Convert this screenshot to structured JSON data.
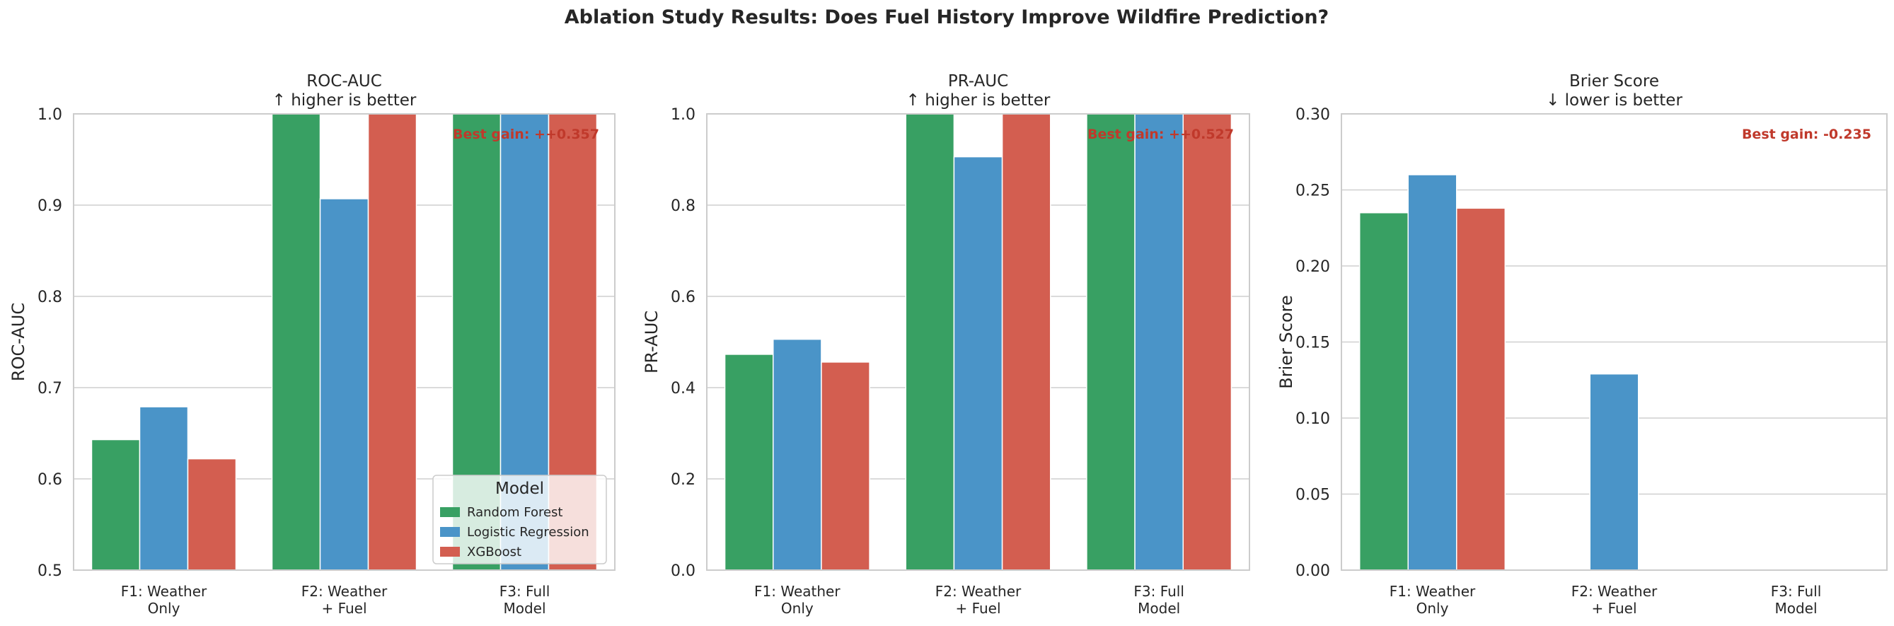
{
  "figure": {
    "suptitle": "Ablation Study Results: Does Fuel History Improve Wildfire Prediction?",
    "legend": {
      "title": "Model",
      "entries": [
        "Random Forest",
        "Logistic Regression",
        "XGBoost"
      ]
    }
  },
  "colors": {
    "Random Forest": "#38a063",
    "Logistic Regression": "#4a94c8",
    "XGBoost": "#d35e50",
    "gain_text": "#c0392b",
    "grid": "#cfcfcf",
    "frame": "#cccccc"
  },
  "chart_data": [
    {
      "type": "bar",
      "title": "ROC-AUC\n↑ higher is better",
      "xlabel": "",
      "ylabel": "ROC-AUC",
      "ylim": [
        0.5,
        1.0
      ],
      "yticks": [
        0.5,
        0.6,
        0.7,
        0.8,
        0.9,
        1.0
      ],
      "ytick_format": 1,
      "categories": [
        "F1: Weather\nOnly",
        "F2: Weather\n+ Fuel",
        "F3: Full\nModel"
      ],
      "series": [
        {
          "name": "Random Forest",
          "values": [
            0.643,
            1.0,
            1.0
          ]
        },
        {
          "name": "Logistic Regression",
          "values": [
            0.679,
            0.907,
            1.0
          ]
        },
        {
          "name": "XGBoost",
          "values": [
            0.622,
            1.0,
            1.0
          ]
        }
      ],
      "annotation": "Best gain: ++0.357",
      "legend": "lower-right"
    },
    {
      "type": "bar",
      "title": "PR-AUC\n↑ higher is better",
      "xlabel": "",
      "ylabel": "PR-AUC",
      "ylim": [
        0.0,
        1.0
      ],
      "yticks": [
        0.0,
        0.2,
        0.4,
        0.6,
        0.8,
        1.0
      ],
      "ytick_format": 1,
      "categories": [
        "F1: Weather\nOnly",
        "F2: Weather\n+ Fuel",
        "F3: Full\nModel"
      ],
      "series": [
        {
          "name": "Random Forest",
          "values": [
            0.473,
            1.0,
            1.0
          ]
        },
        {
          "name": "Logistic Regression",
          "values": [
            0.506,
            0.906,
            1.0
          ]
        },
        {
          "name": "XGBoost",
          "values": [
            0.456,
            1.0,
            1.0
          ]
        }
      ],
      "annotation": "Best gain: ++0.527"
    },
    {
      "type": "bar",
      "title": "Brier Score\n↓ lower is better",
      "xlabel": "",
      "ylabel": "Brier Score",
      "ylim": [
        0.0,
        0.3
      ],
      "yticks": [
        0.0,
        0.05,
        0.1,
        0.15,
        0.2,
        0.25,
        0.3
      ],
      "ytick_format": 2,
      "categories": [
        "F1: Weather\nOnly",
        "F2: Weather\n+ Fuel",
        "F3: Full\nModel"
      ],
      "series": [
        {
          "name": "Random Forest",
          "values": [
            0.235,
            0.0,
            0.0
          ]
        },
        {
          "name": "Logistic Regression",
          "values": [
            0.26,
            0.129,
            0.0
          ]
        },
        {
          "name": "XGBoost",
          "values": [
            0.238,
            0.0,
            0.0
          ]
        }
      ],
      "annotation": "Best gain: -0.235"
    }
  ]
}
